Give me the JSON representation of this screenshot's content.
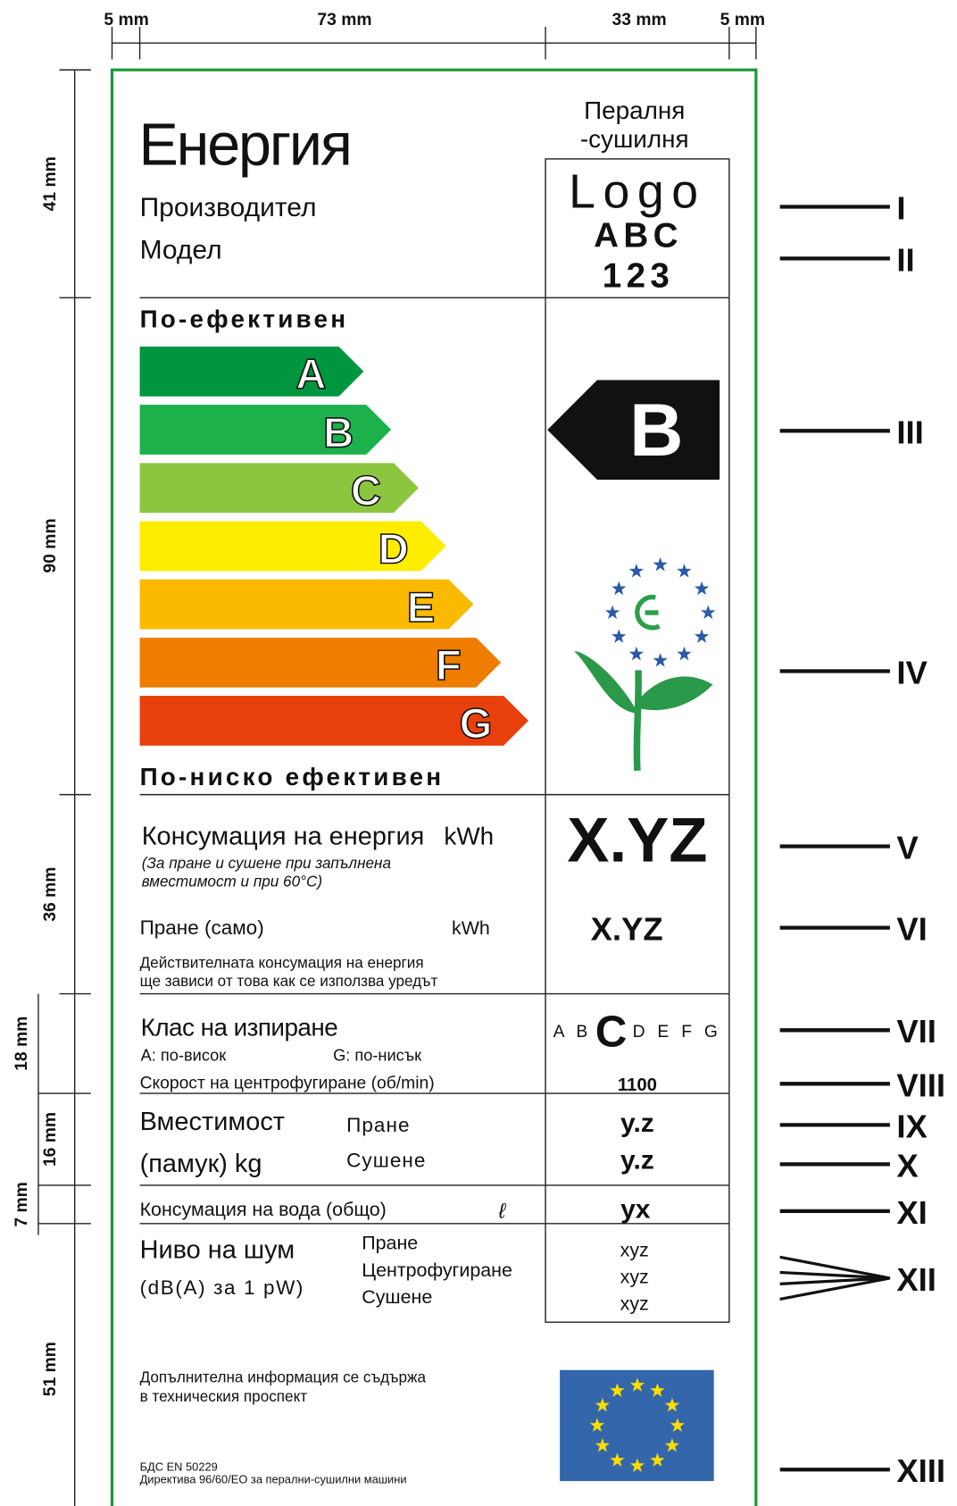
{
  "dimensions": {
    "top": [
      "5 mm",
      "73 mm",
      "33 mm",
      "5 mm"
    ],
    "left": [
      "41 mm",
      "90 mm",
      "36 mm",
      "18 mm",
      "16 mm",
      "7 mm",
      "51 mm"
    ]
  },
  "markers": [
    "I",
    "II",
    "III",
    "IV",
    "V",
    "VI",
    "VII",
    "VIII",
    "IX",
    "X",
    "XI",
    "XII",
    "XIII"
  ],
  "header": {
    "title": "Енергия",
    "manufacturer": "Производител",
    "model": "Модел",
    "appliance": [
      "Пералня",
      "-сушилня"
    ],
    "logo": "Logo",
    "logo_model": "ABC",
    "logo_number": "123"
  },
  "scale": {
    "top_label": "По-ефективен",
    "classes": [
      "A",
      "B",
      "C",
      "D",
      "E",
      "F",
      "G"
    ],
    "bottom_label": "По-ниско ефективен",
    "indicator": "B"
  },
  "energy": {
    "label": "Консумация на енергия",
    "unit": "kWh",
    "note": [
      "(За пране и сушене при запълнена",
      "вместимост и при 60°C)"
    ],
    "value": "X.YZ",
    "wash_label": "Пране (само)",
    "wash_unit": "kWh",
    "wash_value": "X.YZ",
    "disclaimer": [
      "Действителната консумация на енергия",
      "ще зависи от това как се използва уредът"
    ]
  },
  "washing": {
    "label": "Клас на изпиране",
    "high": "A:  по-висок",
    "low": "G:  по-нисък",
    "before": "A B",
    "current": "C",
    "after": "D E F G",
    "spin_label": "Скорост на центрофугиране (об/min)",
    "spin_value": "1100"
  },
  "capacity": {
    "label": [
      "Вместимост",
      "(памук) kg"
    ],
    "wash": "Пране",
    "dry": "Сушене",
    "wash_value": "y.z",
    "dry_value": "y.z"
  },
  "water": {
    "label": "Консумация на вода (общо)",
    "unit": "ℓ",
    "value": "yx"
  },
  "noise": {
    "label": [
      "Ниво на шум",
      "(dB(A) за 1 pW)"
    ],
    "modes": [
      "Пране",
      "Центрофугиране",
      "Сушене"
    ],
    "values": [
      "xyz",
      "xyz",
      "xyz"
    ]
  },
  "footer": {
    "info": [
      "Допълнителна информация се съдържа",
      "в техническия проспект"
    ],
    "standard": "БДС  EN 50229",
    "directive": "Директива 96/60/EO за перални-сушилни машини"
  }
}
